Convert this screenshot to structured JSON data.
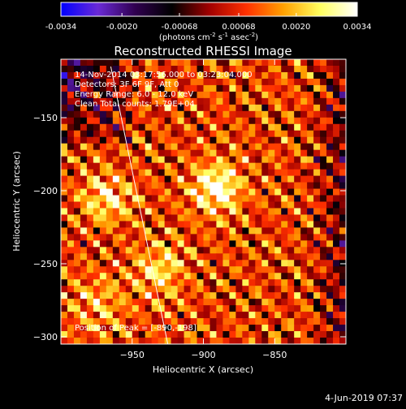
{
  "chart_data": {
    "type": "heatmap",
    "title": "Reconstructed RHESSI Image",
    "xlabel": "Heliocentric X (arcsec)",
    "ylabel": "Heliocentric Y (arcsec)",
    "xlim": [
      -1000,
      -800
    ],
    "ylim": [
      -305,
      -110
    ],
    "x_ticks": [
      -950,
      -900,
      -850
    ],
    "y_ticks": [
      -150,
      -200,
      -250,
      -300
    ],
    "colorbar": {
      "tick_values": [
        -0.0034,
        -0.002,
        -0.00068,
        0.00068,
        0.002,
        0.0034
      ],
      "tick_labels": [
        "-0.0034",
        "-0.0020",
        "-0.00068",
        "0.00068",
        "0.0020",
        "0.0034"
      ],
      "range": [
        -0.0034,
        0.0034
      ],
      "unit_label": {
        "pre": "(photons cm",
        "sup1": "-2",
        "mid1": " s",
        "sup2": "-1",
        "mid2": " asec",
        "sup3": "-2",
        "post": ")"
      }
    },
    "info_lines": [
      "14-Nov-2014 03:17:56.000 to 03:23:04.000",
      "Detectors: 3F 6F 9F, Att 0",
      "Energy Range: 6.0 - 12.0 keV",
      "Clean    Total counts: 1.79E+04"
    ],
    "peak_label": "Position of Peak = [-890,-198]",
    "peak": [
      -890,
      -198
    ],
    "sources": [
      {
        "x": -890,
        "y": -198,
        "sigma": 12,
        "amp": 1.0
      },
      {
        "x": -968,
        "y": -205,
        "sigma": 12,
        "amp": 0.72
      },
      {
        "x": -930,
        "y": -255,
        "sigma": 13,
        "amp": 0.6
      },
      {
        "x": -975,
        "y": -278,
        "sigma": 14,
        "amp": 0.45
      }
    ],
    "limb_line": [
      [
        -965,
        -115
      ],
      [
        -925,
        -305
      ]
    ],
    "colors": {
      "colormap": [
        "#0000ff",
        "#6a2ad6",
        "#300050",
        "#000000",
        "#a00000",
        "#ff3000",
        "#ffa000",
        "#ffff60",
        "#ffffff"
      ],
      "limb": "#ffffff"
    }
  },
  "timestamp": "4-Jun-2019 07:37"
}
